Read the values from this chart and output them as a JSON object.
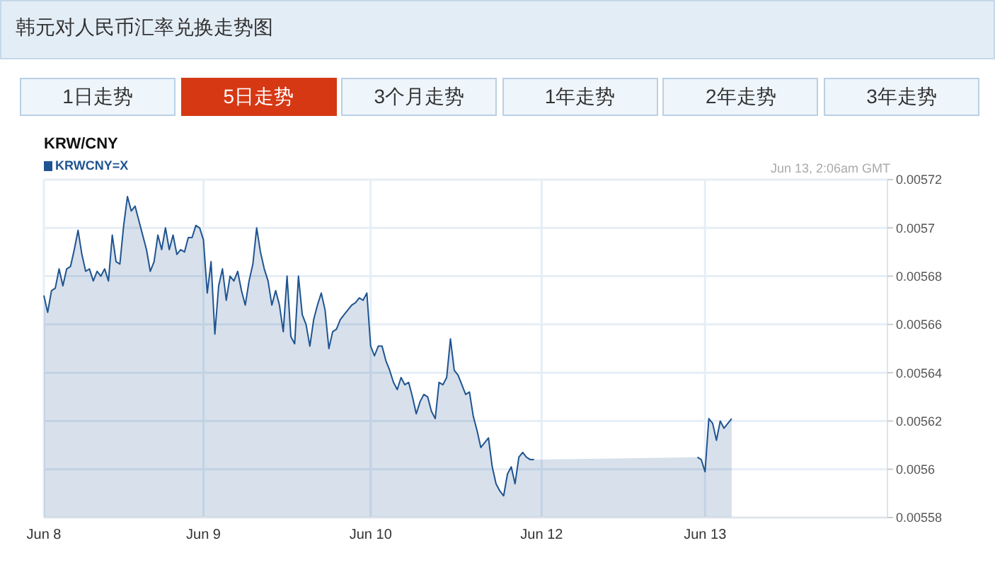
{
  "chart_data": {
    "type": "area",
    "title": "韩元对人民币汇率兑换走势图",
    "subtitle": "KRW/CNY",
    "annotations": [
      "Jun 13, 2:06am GMT",
      "1日走势",
      "5日走势",
      "3个月走势",
      "1年走势",
      "2年走势",
      "3年走势"
    ],
    "categories": [
      "Jun 8",
      null,
      null,
      null,
      null,
      null,
      null,
      null,
      null,
      null,
      null,
      null,
      null,
      null,
      null,
      null,
      null,
      null,
      null,
      null,
      null,
      null,
      null,
      null,
      null,
      null,
      null,
      null,
      null,
      null,
      null,
      null,
      null,
      null,
      null,
      null,
      null,
      null,
      null,
      null,
      null,
      null,
      "Jun 9",
      null,
      null,
      null,
      null,
      null,
      null,
      null,
      null,
      null,
      null,
      null,
      null,
      null,
      null,
      null,
      null,
      null,
      null,
      null,
      null,
      null,
      null,
      null,
      null,
      null,
      null,
      null,
      null,
      null,
      null,
      null,
      null,
      null,
      null,
      null,
      null,
      null,
      null,
      null,
      null,
      null,
      null,
      null,
      "Jun 10",
      null,
      null,
      null,
      null,
      null,
      null,
      null,
      null,
      null,
      null,
      null,
      null,
      null,
      null,
      null,
      null,
      null,
      null,
      null,
      null,
      null,
      null,
      null,
      null,
      null,
      null,
      null,
      null,
      null,
      null,
      null,
      null,
      null,
      null,
      null,
      null,
      null,
      null,
      null,
      null,
      null,
      null,
      null,
      null,
      "Jun 12",
      null,
      null,
      null,
      null,
      null,
      null,
      null,
      null,
      null,
      null,
      null,
      null,
      null,
      null,
      null,
      null,
      null,
      null,
      null,
      null,
      null,
      null,
      null,
      null,
      null,
      null,
      null,
      null,
      null,
      null,
      null,
      null,
      null,
      null,
      null,
      null,
      null,
      null,
      null,
      null,
      null,
      null,
      "Jun 13",
      null,
      null,
      null,
      null,
      null,
      null,
      null,
      null,
      null,
      null,
      null,
      null,
      null,
      null,
      null,
      null,
      null,
      null,
      null,
      null,
      null,
      null,
      null,
      null,
      null,
      null,
      null,
      null,
      null,
      null,
      null,
      null,
      null,
      null,
      null,
      null,
      null,
      null,
      null,
      null,
      null,
      null,
      null,
      null,
      null,
      null,
      null,
      null
    ],
    "series": [
      {
        "name": "KRWCNY=X",
        "color": "#1f5490",
        "values": [
          0.005672,
          0.005665,
          0.005674,
          0.005675,
          0.005683,
          0.005676,
          0.005683,
          0.005684,
          0.005691,
          0.005699,
          0.005689,
          0.005682,
          0.005683,
          0.005678,
          0.005682,
          0.00568,
          0.005683,
          0.005678,
          0.005697,
          0.005686,
          0.005685,
          0.005701,
          0.005713,
          0.005707,
          0.005709,
          0.005703,
          0.005697,
          0.005691,
          0.005682,
          0.005686,
          0.005697,
          0.005691,
          0.0057,
          0.005691,
          0.005697,
          0.005689,
          0.005691,
          0.00569,
          0.005696,
          0.005696,
          0.005701,
          0.0057,
          0.005695,
          0.005673,
          0.005686,
          0.005656,
          0.005676,
          0.005683,
          0.00567,
          0.00568,
          0.005678,
          0.005682,
          0.005674,
          0.005668,
          0.005678,
          0.005685,
          0.0057,
          0.00569,
          0.005683,
          0.005678,
          0.005668,
          0.005674,
          0.005668,
          0.005657,
          0.00568,
          0.005655,
          0.005652,
          0.00568,
          0.005664,
          0.00566,
          0.005651,
          0.005662,
          0.005668,
          0.005673,
          0.005666,
          0.00565,
          0.005657,
          0.005658,
          0.005662,
          0.005664,
          0.005666,
          0.005668,
          0.005669,
          0.005671,
          0.00567,
          0.005673,
          0.005651,
          0.005647,
          0.005651,
          0.005651,
          0.005645,
          0.005641,
          0.005636,
          0.005633,
          0.005638,
          0.005635,
          0.005636,
          0.00563,
          0.005623,
          0.005628,
          0.005631,
          0.00563,
          0.005624,
          0.005621,
          0.005636,
          0.005635,
          0.005638,
          0.005654,
          0.005641,
          0.005639,
          0.005635,
          0.005631,
          0.005632,
          0.005622,
          0.005616,
          0.005609,
          0.005611,
          0.005613,
          0.005601,
          0.005594,
          0.005591,
          0.005589,
          0.005598,
          0.005601,
          0.005594,
          0.005605,
          0.005607,
          0.005605,
          0.005604,
          0.005604,
          null,
          null,
          null,
          null,
          null,
          null,
          null,
          null,
          null,
          null,
          null,
          null,
          null,
          null,
          null,
          null,
          null,
          null,
          null,
          null,
          null,
          null,
          null,
          null,
          null,
          null,
          null,
          null,
          null,
          null,
          null,
          null,
          null,
          null,
          null,
          null,
          null,
          null,
          null,
          null,
          null,
          null,
          0.005605,
          0.005604,
          0.005599,
          0.005621,
          0.005619,
          0.005612,
          0.00562,
          0.005617,
          0.005619,
          0.005621,
          null,
          null,
          null,
          null,
          null,
          null,
          null,
          null,
          null,
          null,
          null,
          null,
          null,
          null,
          null,
          null,
          null,
          null,
          null,
          null,
          null,
          null,
          null,
          null,
          null,
          null,
          null,
          null,
          null,
          null,
          null,
          null,
          null,
          null,
          null,
          null,
          null,
          null,
          null,
          null,
          null
        ]
      }
    ],
    "ylim": [
      0.00558,
      0.00572
    ],
    "yticks": [
      0.00558,
      0.0056,
      0.00562,
      0.00564,
      0.00566,
      0.00568,
      0.0057,
      0.00572
    ],
    "grid": true,
    "legend": "top left"
  }
}
